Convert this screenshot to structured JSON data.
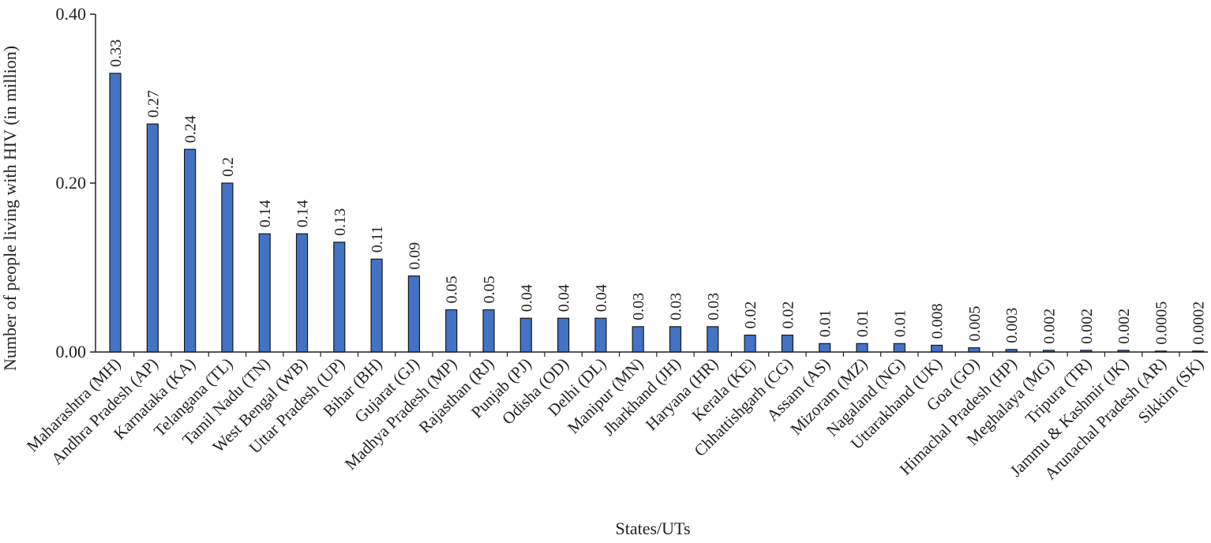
{
  "chart_data": {
    "type": "bar",
    "title": "",
    "xlabel": "States/UTs",
    "ylabel": "Number of people living with HIV (in million)",
    "ylim": [
      0,
      0.4
    ],
    "yticks": [
      "0.00",
      "0.20",
      "0.40"
    ],
    "grid": false,
    "bar_color": "#4472c4",
    "categories": [
      "Maharashtra (MH)",
      "Andhra Pradesh (AP)",
      "Karnataka (KA)",
      "Telangana (TL)",
      "Tamil Nadu (TN)",
      "West Bengal (WB)",
      "Uttar Pradesh (UP)",
      "Bihar (BH)",
      "Gujarat (GJ)",
      "Madhya Pradesh (MP)",
      "Rajasthan (RJ)",
      "Punjab (PJ)",
      "Odisha (OD)",
      "Delhi (DL)",
      "Manipur (MN)",
      "Jharkhand (JH)",
      "Haryana (HR)",
      "Kerala (KE)",
      "Chhattishgarh (CG)",
      "Assam (AS)",
      "Mizoram (MZ)",
      "Nagaland (NG)",
      "Uttarakhand (UK)",
      "Goa (GO)",
      "Himachal Pradesh (HP)",
      "Meghalaya (MG)",
      "Tripura (TR)",
      "Jammu & Kashmir (JK)",
      "Arunachal Pradesh (AR)",
      "Sikkim (SK)"
    ],
    "values": [
      0.33,
      0.27,
      0.24,
      0.2,
      0.14,
      0.14,
      0.13,
      0.11,
      0.09,
      0.05,
      0.05,
      0.04,
      0.04,
      0.04,
      0.03,
      0.03,
      0.03,
      0.02,
      0.02,
      0.01,
      0.01,
      0.01,
      0.008,
      0.005,
      0.003,
      0.002,
      0.002,
      0.002,
      0.0005,
      0.0002
    ],
    "data_labels": [
      "0.33",
      "0.27",
      "0.24",
      "0.2",
      "0.14",
      "0.14",
      "0.13",
      "0.11",
      "0.09",
      "0.05",
      "0.05",
      "0.04",
      "0.04",
      "0.04",
      "0.03",
      "0.03",
      "0.03",
      "0.02",
      "0.02",
      "0.01",
      "0.01",
      "0.01",
      "0.008",
      "0.005",
      "0.003",
      "0.002",
      "0.002",
      "0.002",
      "0.0005",
      "0.0002"
    ]
  }
}
